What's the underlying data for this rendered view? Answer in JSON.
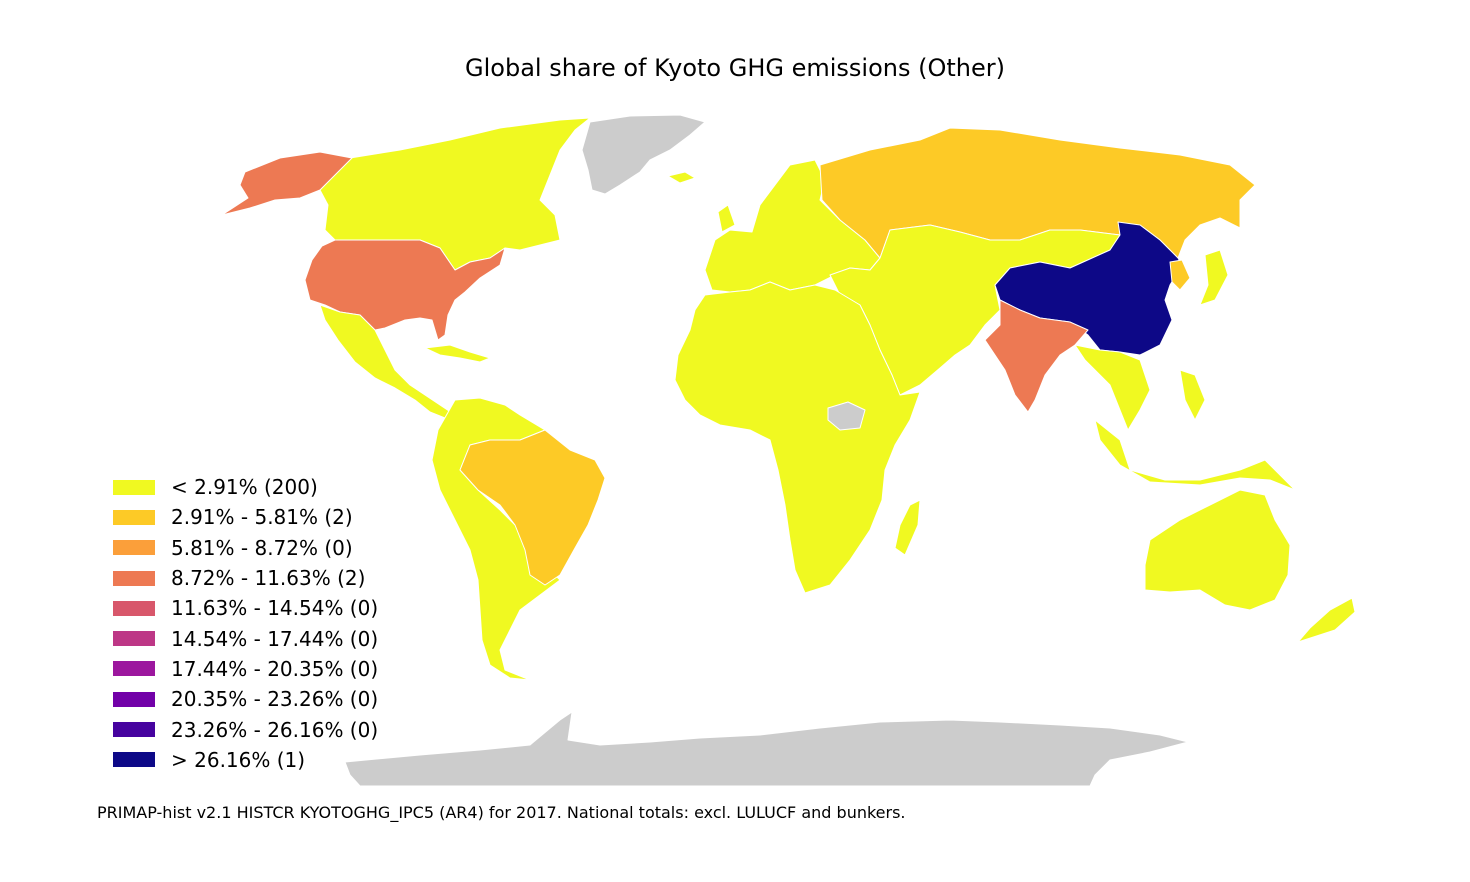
{
  "title": "Global share of Kyoto GHG emissions (Other)",
  "source_note": "PRIMAP-hist v2.1 HISTCR KYOTOGHG_IPC5 (AR4) for 2017. National totals: excl. LULUCF and bunkers.",
  "colors": {
    "no_data": "#cccccc",
    "ocean": "#ffffff",
    "border": "#ffffff"
  },
  "legend": [
    {
      "label": "< 2.91% (200)",
      "color": "#f0f921"
    },
    {
      "label": "2.91% - 5.81% (2)",
      "color": "#fdca26"
    },
    {
      "label": "5.81% - 8.72% (0)",
      "color": "#fb9f3a"
    },
    {
      "label": "8.72% - 11.63% (2)",
      "color": "#ed7953"
    },
    {
      "label": "11.63% - 14.54% (0)",
      "color": "#d8576b"
    },
    {
      "label": "14.54% - 17.44% (0)",
      "color": "#bd3786"
    },
    {
      "label": "17.44% - 20.35% (0)",
      "color": "#9c179e"
    },
    {
      "label": "20.35% - 23.26% (0)",
      "color": "#7201a8"
    },
    {
      "label": "23.26% - 26.16% (0)",
      "color": "#46039f"
    },
    {
      "label": "> 26.16% (1)",
      "color": "#0d0887"
    }
  ],
  "regions": [
    {
      "name": "china",
      "class": 9
    },
    {
      "name": "united-states",
      "class": 3
    },
    {
      "name": "india",
      "class": 3
    },
    {
      "name": "russia",
      "class": 1
    },
    {
      "name": "brazil",
      "class": 1
    },
    {
      "name": "greenland",
      "class": "no_data"
    },
    {
      "name": "antarctica",
      "class": "no_data"
    },
    {
      "name": "south-sudan",
      "class": "no_data"
    }
  ]
}
